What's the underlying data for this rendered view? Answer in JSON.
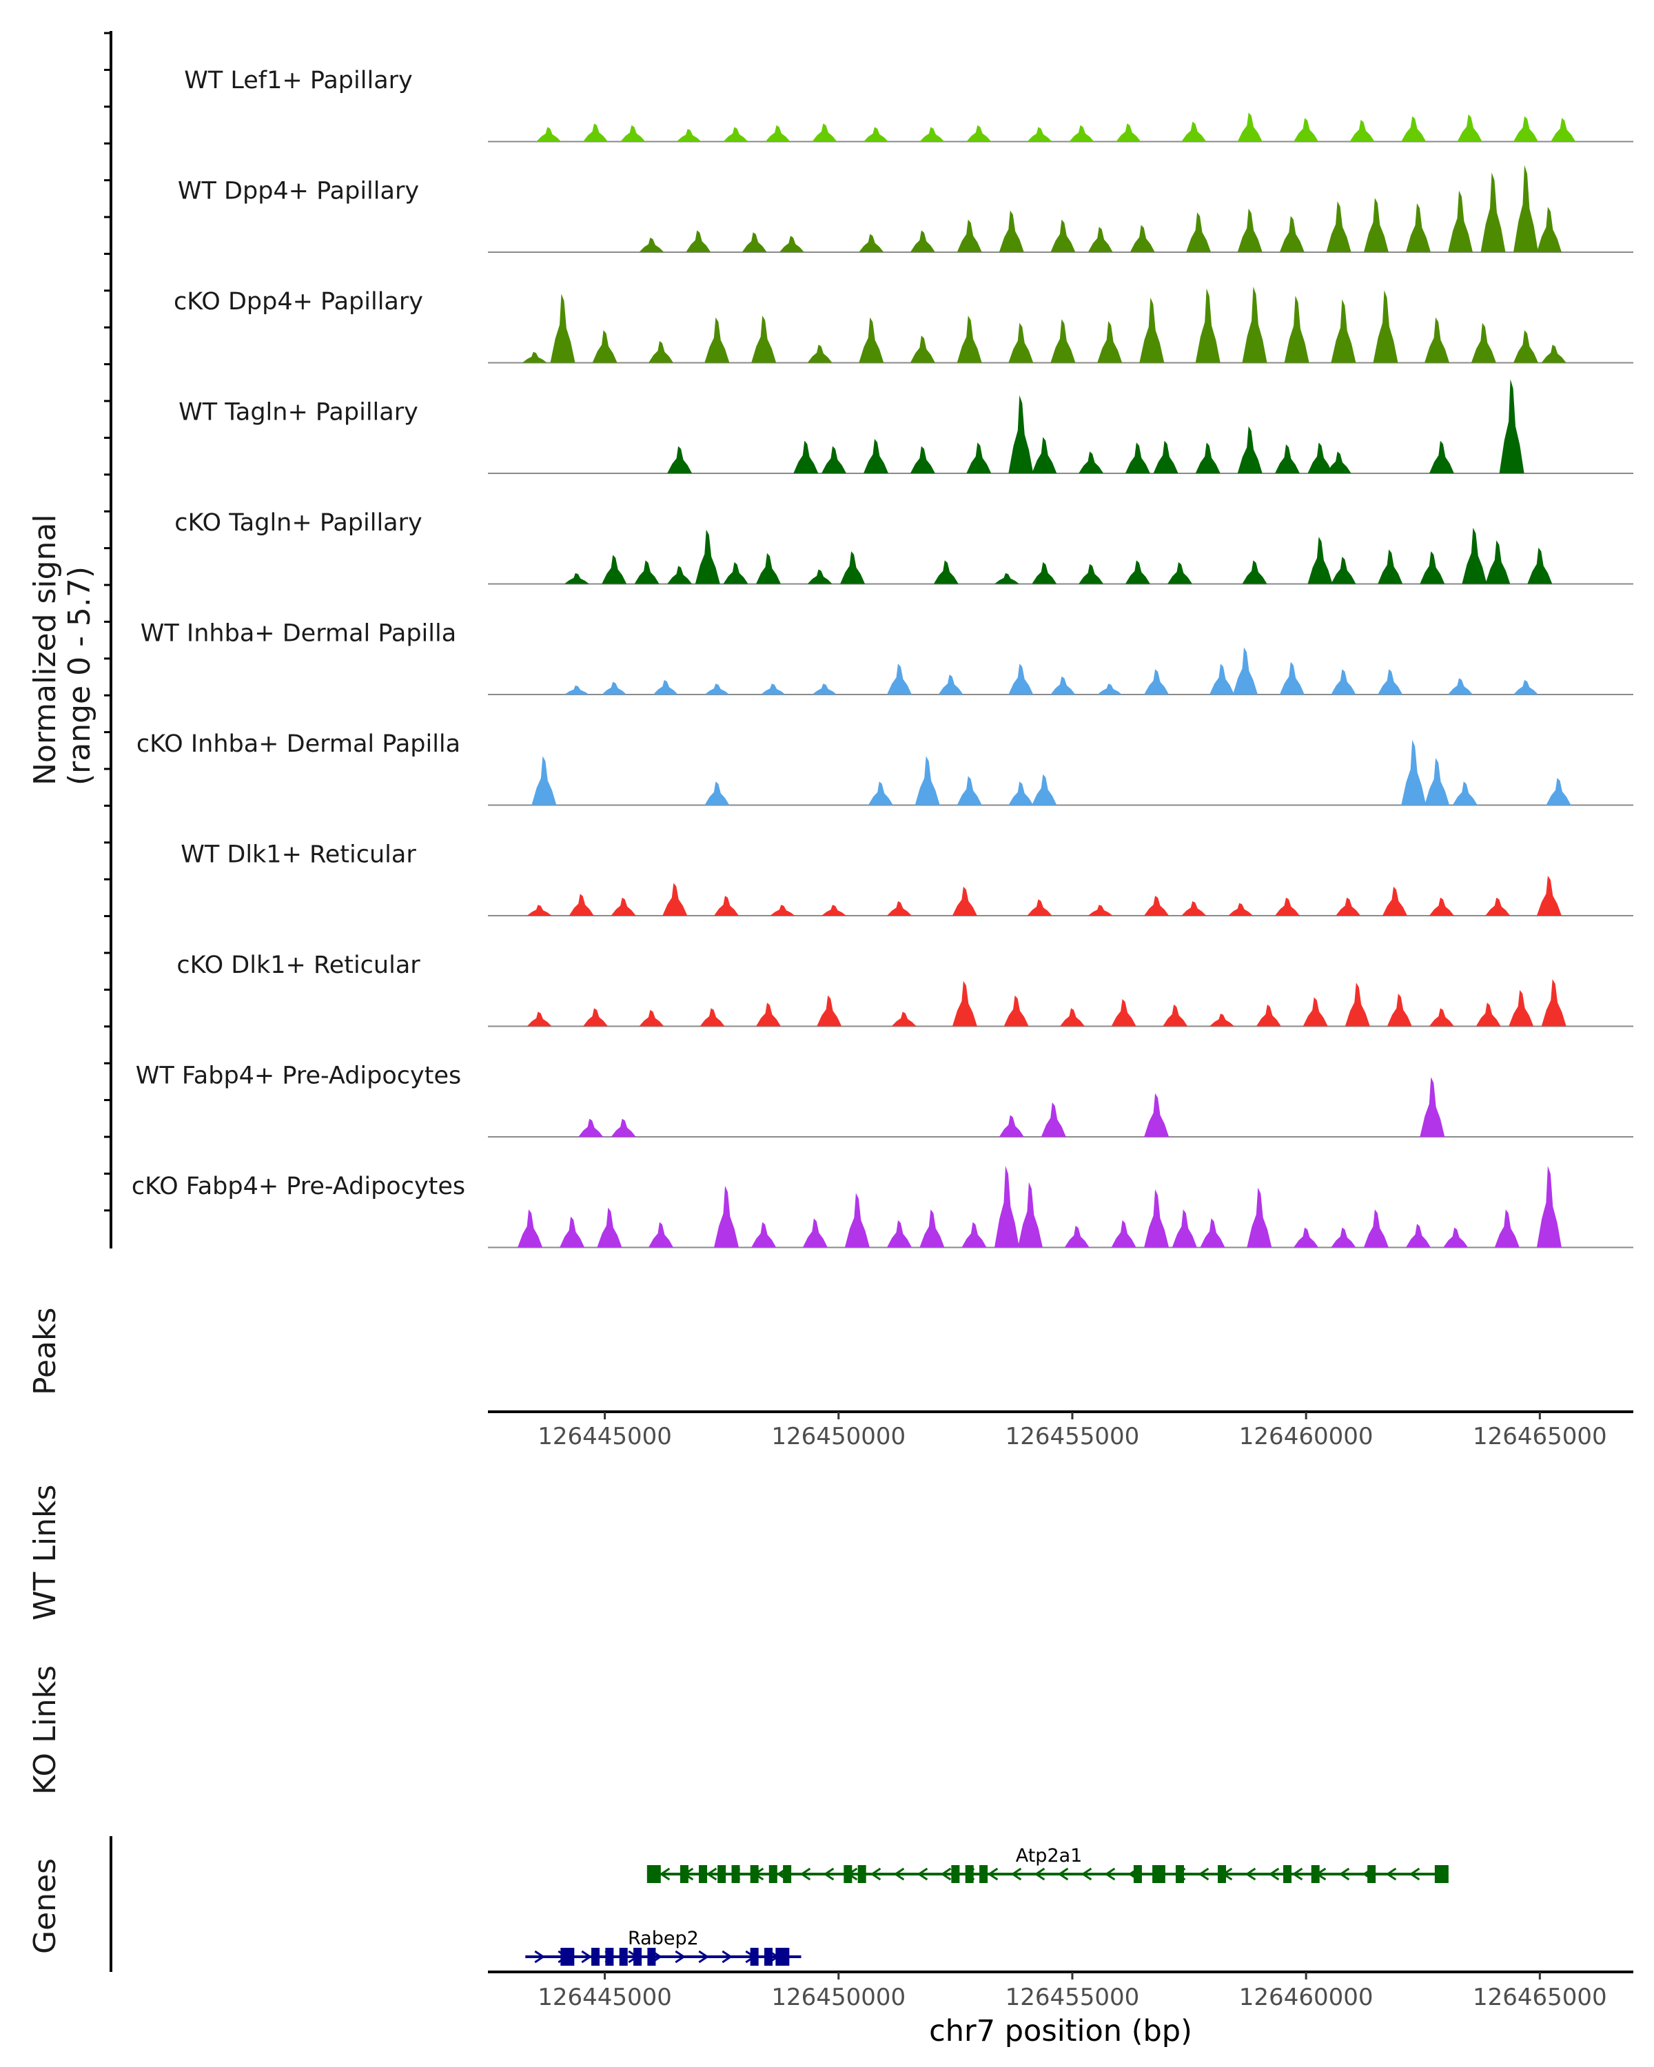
{
  "chart_data": {
    "type": "area",
    "title": "",
    "chromosome": "chr7",
    "xlabel": "chr7 position (bp)",
    "ylabel": "Normalized signal\n(range 0 - 5.7)",
    "xlim": [
      126442500,
      126467000
    ],
    "ylim": [
      0,
      5.7
    ],
    "xticks": [
      "126445000",
      "126450000",
      "126455000",
      "126460000",
      "126465000"
    ],
    "xtick_values": [
      126445000,
      126450000,
      126455000,
      126460000,
      126465000
    ],
    "panel_labels": {
      "peaks": "Peaks",
      "wt_links": "WT Links",
      "ko_links": "KO Links",
      "genes": "Genes"
    },
    "tracks": [
      {
        "name": "WT Lef1+ Papillary",
        "color": "#66cc00",
        "x": [
          126443800,
          126444800,
          126445600,
          126446800,
          126447800,
          126448700,
          126449700,
          126450800,
          126452000,
          126453000,
          126454300,
          126455200,
          126456200,
          126457600,
          126458800,
          126460000,
          126461200,
          126462300,
          126463500,
          126464700,
          126465500
        ],
        "y": [
          0.8,
          1.0,
          0.9,
          0.7,
          0.8,
          0.9,
          1.0,
          0.8,
          0.8,
          0.9,
          0.8,
          0.9,
          1.0,
          1.1,
          1.6,
          1.3,
          1.2,
          1.4,
          1.5,
          1.4,
          1.3
        ]
      },
      {
        "name": "WT Dpp4+ Papillary",
        "color": "#4d8c00",
        "x": [
          126446000,
          126447000,
          126448200,
          126449000,
          126450700,
          126451800,
          126452800,
          126453700,
          126454800,
          126455600,
          126456500,
          126457700,
          126458800,
          126459700,
          126460700,
          126461500,
          126462400,
          126463300,
          126464000,
          126464700,
          126465200
        ],
        "y": [
          0.8,
          1.2,
          1.1,
          0.9,
          1.0,
          1.2,
          1.8,
          2.3,
          1.8,
          1.4,
          1.5,
          2.2,
          2.4,
          2.0,
          2.8,
          3.0,
          2.7,
          3.4,
          4.4,
          4.8,
          2.5
        ]
      },
      {
        "name": "cKO Dpp4+ Papillary",
        "color": "#4d8c00",
        "x": [
          126443500,
          126444100,
          126445000,
          126446200,
          126447400,
          126448400,
          126449600,
          126450700,
          126451800,
          126452800,
          126453900,
          126454800,
          126455800,
          126456700,
          126457900,
          126458900,
          126459800,
          126460800,
          126461700,
          126462800,
          126463800,
          126464700,
          126465300
        ],
        "y": [
          0.6,
          3.8,
          1.8,
          1.2,
          2.5,
          2.6,
          1.0,
          2.5,
          1.5,
          2.6,
          2.2,
          2.4,
          2.3,
          3.6,
          4.1,
          4.2,
          3.7,
          3.5,
          4.0,
          2.5,
          2.2,
          1.8,
          1.0
        ]
      },
      {
        "name": "WT Tagln+ Papillary",
        "color": "#006600",
        "x": [
          126446600,
          126449300,
          126449900,
          126450800,
          126451800,
          126453000,
          126453900,
          126454400,
          126455400,
          126456400,
          126457000,
          126457900,
          126458800,
          126459600,
          126460300,
          126460700,
          126462900,
          126464400
        ],
        "y": [
          1.5,
          1.8,
          1.5,
          1.9,
          1.5,
          1.7,
          4.3,
          2.0,
          1.2,
          1.7,
          1.8,
          1.7,
          2.6,
          1.6,
          1.7,
          1.2,
          1.8,
          5.2
        ]
      },
      {
        "name": "cKO Tagln+ Papillary",
        "color": "#006600",
        "x": [
          126444400,
          126445200,
          126445900,
          126446600,
          126447200,
          126447800,
          126448500,
          126449600,
          126450300,
          126452300,
          126453600,
          126454400,
          126455400,
          126456400,
          126457300,
          126458900,
          126460300,
          126460800,
          126461800,
          126462700,
          126463600,
          126464100,
          126465000
        ],
        "y": [
          0.6,
          1.6,
          1.3,
          1.0,
          3.0,
          1.2,
          1.7,
          0.8,
          1.8,
          1.3,
          0.6,
          1.2,
          1.1,
          1.3,
          1.2,
          1.3,
          2.6,
          1.5,
          1.9,
          1.8,
          3.1,
          2.4,
          2.0
        ]
      },
      {
        "name": "WT Inhba+ Dermal Papilla",
        "color": "#56a5e8",
        "x": [
          126444400,
          126445200,
          126446300,
          126447400,
          126448600,
          126449700,
          126451300,
          126452400,
          126453900,
          126454800,
          126455800,
          126456800,
          126458200,
          126458700,
          126459700,
          126460800,
          126461800,
          126463300,
          126464700
        ],
        "y": [
          0.5,
          0.7,
          0.8,
          0.6,
          0.6,
          0.6,
          1.7,
          1.1,
          1.7,
          1.0,
          0.6,
          1.4,
          1.7,
          2.6,
          1.8,
          1.4,
          1.4,
          0.9,
          0.8
        ]
      },
      {
        "name": "cKO Inhba+ Dermal Papilla",
        "color": "#56a5e8",
        "x": [
          126443700,
          126447400,
          126450900,
          126451900,
          126452800,
          126453900,
          126454400,
          126462300,
          126462800,
          126463400,
          126465400
        ],
        "y": [
          2.7,
          1.3,
          1.3,
          2.7,
          1.6,
          1.3,
          1.7,
          3.6,
          2.6,
          1.3,
          1.5
        ]
      },
      {
        "name": "WT Dlk1+ Reticular",
        "color": "#f2302a",
        "x": [
          126443600,
          126444500,
          126445400,
          126446500,
          126447600,
          126448800,
          126449900,
          126451300,
          126452700,
          126454300,
          126455600,
          126456800,
          126457600,
          126458600,
          126459600,
          126460900,
          126461900,
          126462900,
          126464100,
          126465200
        ],
        "y": [
          0.6,
          1.2,
          1.0,
          1.8,
          1.1,
          0.6,
          0.6,
          0.8,
          1.6,
          0.9,
          0.6,
          1.1,
          0.8,
          0.7,
          1.0,
          1.0,
          1.6,
          1.0,
          1.0,
          2.2
        ]
      },
      {
        "name": "cKO Dlk1+ Reticular",
        "color": "#f2302a",
        "x": [
          126443600,
          126444800,
          126446000,
          126447300,
          126448500,
          126449800,
          126451400,
          126452700,
          126453800,
          126455000,
          126456100,
          126457200,
          126458200,
          126459200,
          126460200,
          126461100,
          126462000,
          126462900,
          126463900,
          126464600,
          126465300
        ],
        "y": [
          0.8,
          1.0,
          0.9,
          1.0,
          1.3,
          1.7,
          0.8,
          2.5,
          1.7,
          1.0,
          1.5,
          1.2,
          0.7,
          1.2,
          1.6,
          2.4,
          1.8,
          1.0,
          1.3,
          2.0,
          2.6
        ]
      },
      {
        "name": "WT Fabp4+ Pre-Adipocytes",
        "color": "#b235ea",
        "x": [
          126444700,
          126445400,
          126453700,
          126454600,
          126456800,
          126462700
        ],
        "y": [
          1.0,
          1.0,
          1.2,
          1.9,
          2.4,
          3.3
        ]
      },
      {
        "name": "cKO Fabp4+ Pre-Adipocytes",
        "color": "#b235ea",
        "x": [
          126443400,
          126444300,
          126445100,
          126446200,
          126447600,
          126448400,
          126449500,
          126450400,
          126451300,
          126452000,
          126452900,
          126453600,
          126454100,
          126455100,
          126456100,
          126456800,
          126457400,
          126458000,
          126459000,
          126460000,
          126460800,
          126461500,
          126462400,
          126463200,
          126464300,
          126465200
        ],
        "y": [
          2.1,
          1.7,
          2.2,
          1.4,
          3.4,
          1.4,
          1.6,
          3.0,
          1.5,
          2.1,
          1.4,
          4.5,
          3.6,
          1.2,
          1.5,
          3.2,
          2.1,
          1.6,
          3.3,
          1.1,
          1.1,
          2.1,
          1.3,
          1.1,
          2.1,
          4.5
        ]
      }
    ],
    "genes": [
      {
        "name": "Atp2a1",
        "strand": "-",
        "start": 126446000,
        "end": 126463000,
        "exons": [
          126446050,
          126446700,
          126447100,
          126447500,
          126447800,
          126448200,
          126448600,
          126448900,
          126450200,
          126450500,
          126452500,
          126452800,
          126453100,
          126456400,
          126456800,
          126456900,
          126457300,
          126458200,
          126459600,
          126460200,
          126461400,
          126462900
        ]
      },
      {
        "name": "Rabep2",
        "strand": "+",
        "start": 126443300,
        "end": 126449200,
        "exons": [
          126444200,
          126444800,
          126445100,
          126445400,
          126445700,
          126446000,
          126448200,
          126448500,
          126448800
        ]
      }
    ]
  }
}
